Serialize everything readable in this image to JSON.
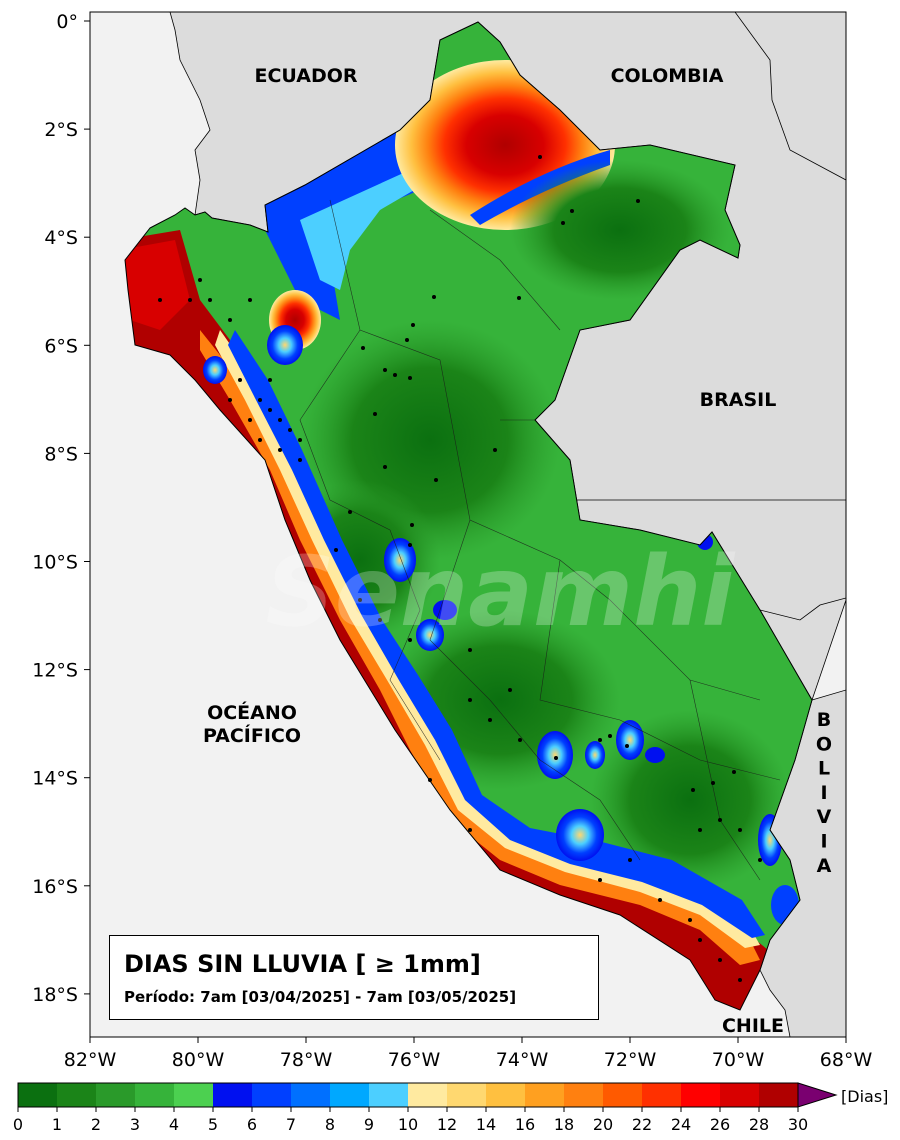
{
  "map": {
    "lat_ticks": [
      "0°",
      "2°S",
      "4°S",
      "6°S",
      "8°S",
      "10°S",
      "12°S",
      "14°S",
      "16°S",
      "18°S"
    ],
    "lon_ticks": [
      "82°W",
      "80°W",
      "78°W",
      "76°W",
      "74°W",
      "72°W",
      "70°W",
      "68°W"
    ],
    "labels": {
      "ecuador": "ECUADOR",
      "colombia": "COLOMBIA",
      "brasil": "BRASIL",
      "ocean_1": "OCÉANO",
      "ocean_2": "PACÍFICO",
      "bolivia": [
        "B",
        "O",
        "L",
        "I",
        "V",
        "I",
        "A"
      ],
      "chile": "CHILE"
    },
    "watermark": "Senamhi",
    "colors": {
      "land_neighbor": "#dcdcdc",
      "ocean": "#f2f2f2"
    }
  },
  "info": {
    "title": "DIAS SIN LLUVIA [ ≥ 1mm]",
    "period": "Período: 7am [03/04/2025] - 7am [03/05/2025]"
  },
  "colorbar": {
    "unit": "[Dias]",
    "tick_labels": [
      "0",
      "1",
      "2",
      "3",
      "4",
      "5",
      "6",
      "7",
      "8",
      "9",
      "10",
      "12",
      "14",
      "16",
      "18",
      "20",
      "22",
      "24",
      "26",
      "28",
      "30"
    ],
    "colors": [
      "#0b7010",
      "#1b8418",
      "#2a9a2a",
      "#36b33a",
      "#4cd050",
      "#0010f0",
      "#0040ff",
      "#0070ff",
      "#00a8ff",
      "#4ccfff",
      "#ffeaa0",
      "#ffd870",
      "#ffc040",
      "#ffa020",
      "#ff8010",
      "#ff5a00",
      "#ff3000",
      "#ff0000",
      "#d80000",
      "#b00000"
    ],
    "extend_color": "#7a0070"
  }
}
